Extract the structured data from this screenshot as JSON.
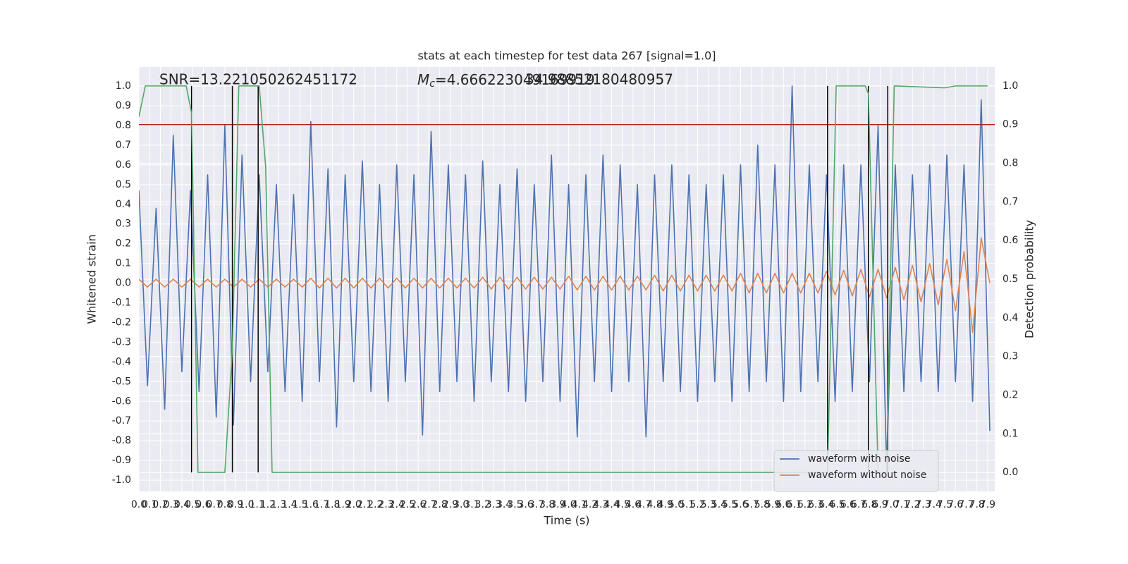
{
  "chart_data": {
    "type": "line",
    "title": "stats at each timestep for test data 267 [signal=1.0]",
    "xlabel": "Time (s)",
    "ylabel": "Whitened strain",
    "y2label": "Detection probability",
    "annotations": [
      {
        "text": "SNR=13.221050262451172"
      },
      {
        "symbol": "M",
        "subscript": "c",
        "text": "=4.666223049169919"
      },
      {
        "text": "34.98852180480957"
      }
    ],
    "x": [
      0,
      0.08,
      0.16,
      0.24,
      0.32,
      0.4,
      0.48,
      0.56,
      0.64,
      0.72,
      0.8,
      0.88,
      0.96,
      1.04,
      1.12,
      1.2,
      1.28,
      1.36,
      1.44,
      1.52,
      1.6,
      1.68,
      1.76,
      1.84,
      1.92,
      2,
      2.08,
      2.16,
      2.24,
      2.32,
      2.4,
      2.48,
      2.56,
      2.64,
      2.72,
      2.8,
      2.88,
      2.96,
      3.04,
      3.12,
      3.2,
      3.28,
      3.36,
      3.44,
      3.52,
      3.6,
      3.68,
      3.76,
      3.84,
      3.92,
      4,
      4.08,
      4.16,
      4.24,
      4.32,
      4.4,
      4.48,
      4.56,
      4.64,
      4.72,
      4.8,
      4.88,
      4.96,
      5.04,
      5.12,
      5.2,
      5.28,
      5.36,
      5.44,
      5.52,
      5.6,
      5.68,
      5.76,
      5.84,
      5.92,
      6,
      6.08,
      6.16,
      6.24,
      6.32,
      6.4,
      6.48,
      6.56,
      6.64,
      6.72,
      6.8,
      6.88,
      6.96,
      7.04,
      7.12,
      7.2,
      7.28,
      7.36,
      7.44,
      7.52,
      7.6,
      7.68,
      7.76,
      7.84,
      7.92
    ],
    "series": [
      {
        "name": "waveform with noise",
        "color": "#4c72b0",
        "values": [
          0.47,
          -0.52,
          0.38,
          -0.64,
          0.75,
          -0.45,
          0.47,
          -0.55,
          0.55,
          -0.68,
          0.8,
          -0.72,
          0.65,
          -0.5,
          0.55,
          -0.45,
          0.5,
          -0.55,
          0.45,
          -0.6,
          0.82,
          -0.5,
          0.58,
          -0.73,
          0.55,
          -0.5,
          0.62,
          -0.55,
          0.5,
          -0.6,
          0.6,
          -0.5,
          0.55,
          -0.77,
          0.77,
          -0.55,
          0.6,
          -0.5,
          0.55,
          -0.6,
          0.62,
          -0.5,
          0.5,
          -0.55,
          0.58,
          -0.6,
          0.5,
          -0.5,
          0.65,
          -0.6,
          0.5,
          -0.78,
          0.55,
          -0.5,
          0.65,
          -0.55,
          0.6,
          -0.5,
          0.5,
          -0.78,
          0.55,
          -0.5,
          0.6,
          -0.55,
          0.55,
          -0.6,
          0.5,
          -0.5,
          0.55,
          -0.6,
          0.6,
          -0.55,
          0.7,
          -0.5,
          0.6,
          -0.6,
          1.0,
          -0.55,
          0.6,
          -0.5,
          0.55,
          -0.6,
          0.6,
          -0.55,
          0.6,
          -0.5,
          0.8,
          -0.95,
          0.6,
          -0.55,
          0.55,
          -0.5,
          0.6,
          -0.55,
          0.65,
          -0.5,
          0.6,
          -0.6,
          0.93,
          -0.75
        ]
      },
      {
        "name": "waveform without noise",
        "color": "#dd8452",
        "values": [
          0.02,
          -0.02,
          0.02,
          -0.02,
          0.02,
          -0.02,
          0.02,
          -0.02,
          0.02,
          -0.02,
          0.02,
          -0.02,
          0.02,
          -0.02,
          0.02,
          -0.02,
          0.02,
          -0.02,
          0.02,
          -0.02,
          0.025,
          -0.025,
          0.025,
          -0.025,
          0.025,
          -0.025,
          0.025,
          -0.025,
          0.025,
          -0.025,
          0.025,
          -0.025,
          0.025,
          -0.025,
          0.025,
          -0.025,
          0.025,
          -0.025,
          0.025,
          -0.025,
          0.03,
          -0.03,
          0.03,
          -0.03,
          0.03,
          -0.03,
          0.03,
          -0.03,
          0.03,
          -0.03,
          0.035,
          -0.035,
          0.035,
          -0.035,
          0.035,
          -0.035,
          0.035,
          -0.035,
          0.035,
          -0.035,
          0.04,
          -0.04,
          0.04,
          -0.04,
          0.04,
          -0.04,
          0.04,
          -0.04,
          0.04,
          -0.04,
          0.05,
          -0.05,
          0.05,
          -0.05,
          0.05,
          -0.05,
          0.05,
          -0.05,
          0.05,
          -0.05,
          0.06,
          -0.06,
          0.065,
          -0.065,
          0.07,
          -0.07,
          0.07,
          -0.075,
          0.08,
          -0.085,
          0.09,
          -0.095,
          0.1,
          -0.11,
          0.12,
          -0.14,
          0.16,
          -0.25,
          0.23,
          0.0
        ]
      },
      {
        "color": "#55a868",
        "axis": "y2",
        "x": [
          0,
          0.06,
          0.44,
          0.49,
          0.55,
          0.8,
          0.87,
          0.93,
          1.12,
          1.18,
          1.24,
          6.41,
          6.49,
          6.76,
          6.79,
          6.88,
          6.96,
          7.03,
          7.5,
          7.6,
          7.9
        ],
        "values": [
          0.92,
          1.0,
          1.0,
          0.93,
          0.0,
          0.0,
          0.32,
          1.0,
          1.0,
          0.79,
          0.0,
          0.0,
          1.0,
          1.0,
          0.98,
          0.0,
          0.0,
          1.0,
          0.995,
          1.0,
          1.0
        ]
      }
    ],
    "hline": {
      "y": 0.9,
      "axis": "y2",
      "color": "#b22222"
    },
    "vlines": {
      "x": [
        0.49,
        0.87,
        1.11,
        6.41,
        6.79,
        6.97
      ],
      "ymin": 0,
      "ymax": 1,
      "axis": "y2",
      "color": "#000000"
    },
    "xlim": [
      0,
      7.966
    ],
    "ylim": [
      -1.057,
      1.097
    ],
    "y2lim": [
      -0.049,
      1.049
    ],
    "xticks": [
      {
        "value": 0,
        "label": "0.0"
      },
      0.1,
      0.2,
      0.3,
      0.4,
      0.5,
      0.6,
      0.7,
      0.8,
      0.9,
      {
        "value": 1,
        "label": "1.0"
      },
      1.1,
      1.2,
      1.3,
      1.4,
      1.5,
      1.6,
      1.7,
      1.8,
      1.9,
      {
        "value": 2,
        "label": "2.0"
      },
      2.1,
      2.2,
      2.3,
      2.4,
      2.5,
      2.6,
      2.7,
      2.8,
      2.9,
      {
        "value": 3,
        "label": "3.0"
      },
      3.1,
      3.2,
      3.3,
      3.4,
      3.5,
      3.6,
      3.7,
      3.8,
      3.9,
      {
        "value": 4,
        "label": "4.0"
      },
      4.1,
      4.2,
      4.3,
      4.4,
      4.5,
      4.6,
      4.7,
      4.8,
      4.9,
      {
        "value": 5,
        "label": "5.0"
      },
      5.1,
      5.2,
      5.3,
      5.4,
      5.5,
      5.6,
      5.7,
      5.8,
      5.9,
      {
        "value": 6,
        "label": "6.0"
      },
      6.1,
      6.2,
      6.3,
      6.4,
      6.5,
      6.6,
      6.7,
      6.8,
      6.9,
      {
        "value": 7,
        "label": "7.0"
      },
      7.1,
      7.2,
      7.3,
      7.4,
      7.5,
      7.6,
      7.7,
      7.8,
      7.9
    ],
    "yticks": [
      {
        "value": -1,
        "label": "-1.0"
      },
      -0.9,
      -0.8,
      -0.7,
      -0.6,
      -0.5,
      -0.4,
      -0.3,
      -0.2,
      -0.1,
      {
        "value": 0,
        "label": "0.0"
      },
      0.1,
      0.2,
      0.3,
      0.4,
      0.5,
      0.6,
      0.7,
      0.8,
      0.9,
      {
        "value": 1,
        "label": "1.0"
      }
    ],
    "y2ticks": [
      {
        "value": 0,
        "label": "0.0"
      },
      0.1,
      0.2,
      0.3,
      0.4,
      0.5,
      0.6,
      0.7,
      0.8,
      0.9,
      {
        "value": 1,
        "label": "1.0"
      }
    ],
    "grid": true,
    "legend": "lower right"
  }
}
